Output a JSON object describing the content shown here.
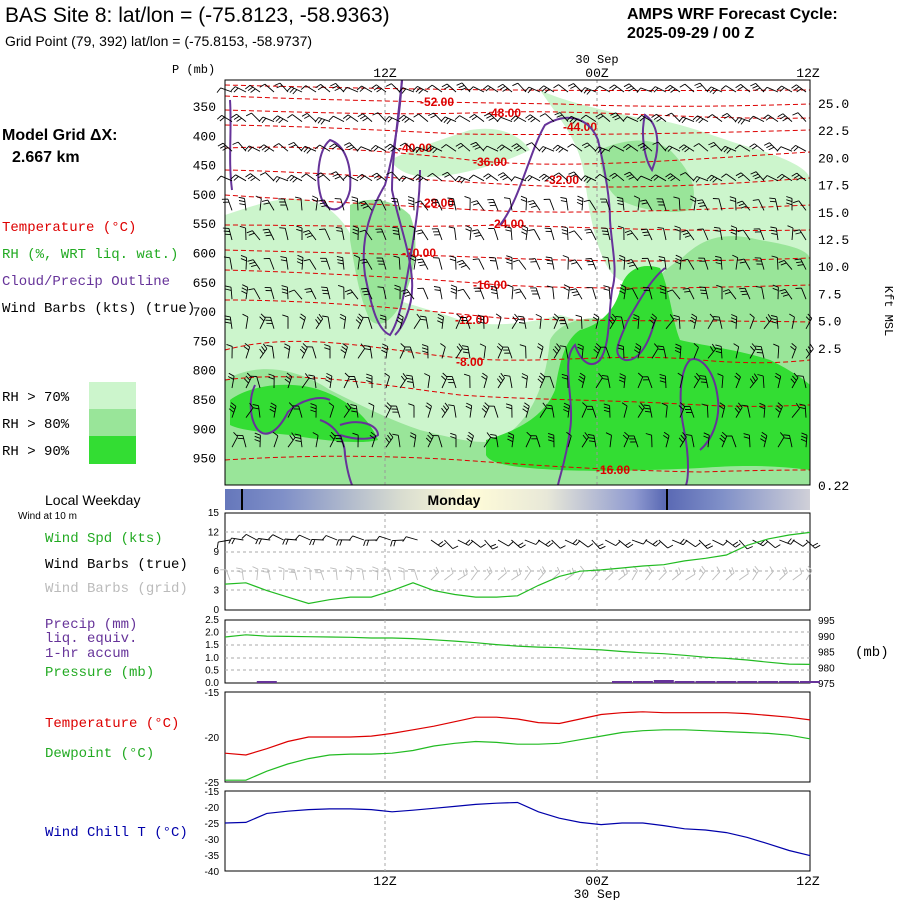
{
  "header": {
    "site_title": "BAS Site 8:  lat/lon = (-75.8123, -58.9363)",
    "grid_point": "Grid Point (79, 392) lat/lon = (-75.8153, -58.9737)",
    "cycle_title": "AMPS WRF Forecast Cycle:",
    "cycle_value": "2025-09-29 / 00  Z"
  },
  "model_grid": {
    "label": "Model Grid ΔX:",
    "value": "2.667 km"
  },
  "time_axis": {
    "top_date": "30 Sep",
    "bottom_date": "30 Sep",
    "ticks": [
      "12Z",
      "00Z",
      "12Z"
    ]
  },
  "colors": {
    "rh70": "#ccf5cc",
    "rh80": "#99e599",
    "rh90": "#33dd33",
    "temp": "#dd0000",
    "cloud": "#663399",
    "rh_text": "#22aa22",
    "wind_chill": "#0000aa",
    "precip": "#663399",
    "grid_barbs": "#bbbbbb"
  },
  "chart_data": [
    {
      "type": "cross-section",
      "title": "Vertical time-height section",
      "ylabel_left": "P (mb)",
      "ylabel_right": "Kft MSL",
      "pressure_levels": [
        350,
        400,
        450,
        500,
        550,
        600,
        650,
        700,
        750,
        800,
        850,
        900,
        950
      ],
      "height_kft_labels": [
        "25.0",
        "22.5",
        "20.0",
        "17.5",
        "15.0",
        "12.5",
        "10.0",
        "7.5",
        "5.0",
        "2.5",
        "0.22"
      ],
      "temperature_labels": [
        "-52.00",
        "-48.00",
        "-44.00",
        "-40.00",
        "-36.00",
        "-32.00",
        "-28.00",
        "-24.00",
        "-20.00",
        "-16.00",
        "-12.00",
        "-8.00",
        "-16.00"
      ],
      "legend": {
        "temperature": "Temperature (°C)",
        "rh": "RH (%, WRT liq. wat.)",
        "cloud": "Cloud/Precip Outline",
        "wind": "Wind Barbs (kts) (true)",
        "rh70": "RH > 70%",
        "rh80": "RH > 80%",
        "rh90": "RH > 90%"
      }
    },
    {
      "type": "band",
      "title": "Local Weekday",
      "day_label": "Monday"
    },
    {
      "type": "line",
      "title": "Wind at 10 m",
      "yticks": [
        "15",
        "12",
        "9",
        "6",
        "3",
        "0"
      ],
      "ylim": [
        0,
        15
      ],
      "legend": {
        "speed": "Wind Spd (kts)",
        "barbs_true": "Wind Barbs (true)",
        "barbs_grid": "Wind Barbs (grid)"
      },
      "x_hours": [
        0,
        3,
        6,
        9,
        12,
        15,
        18,
        21,
        24,
        27,
        30,
        33,
        36,
        39,
        42,
        45,
        48,
        51,
        54,
        57,
        60,
        63,
        66,
        69,
        72,
        75,
        78,
        81,
        84
      ],
      "series": [
        {
          "name": "Wind Spd (kts)",
          "values": [
            4.0,
            4.2,
            3.0,
            2.0,
            1.0,
            1.6,
            2.0,
            2.0,
            3.0,
            4.2,
            3.0,
            2.4,
            2.0,
            2.0,
            2.2,
            3.8,
            5.2,
            6.0,
            6.2,
            6.5,
            6.8,
            7.0,
            7.6,
            8.0,
            8.5,
            10.0,
            11.0,
            11.6,
            12.0
          ]
        }
      ]
    },
    {
      "type": "line",
      "title": "Precip / Pressure",
      "legend": {
        "p1": "Precip (mm)",
        "p2": "liq. equiv.",
        "p3": "1-hr accum",
        "pressure": "Pressure (mb)"
      },
      "yticks_left": [
        "2.5",
        "2.0",
        "1.5",
        "1.0",
        "0.5",
        "0.0"
      ],
      "yticks_right": [
        "995",
        "990",
        "985",
        "980",
        "975"
      ],
      "right_unit": "(mb)",
      "ylim_left": [
        0,
        2.5
      ],
      "ylim_right": [
        975,
        995
      ],
      "x_hours": [
        0,
        3,
        6,
        9,
        12,
        15,
        18,
        21,
        24,
        27,
        30,
        33,
        36,
        39,
        42,
        45,
        48,
        51,
        54,
        57,
        60,
        63,
        66,
        69,
        72,
        75,
        78,
        81,
        84
      ],
      "series": [
        {
          "name": "Pressure (mb)",
          "values": [
            989.6,
            990.3,
            989.9,
            989.8,
            989.7,
            989.6,
            989.5,
            989.3,
            989.3,
            989.1,
            988.7,
            988.3,
            987.8,
            987.2,
            986.7,
            986.4,
            986.2,
            985.8,
            985.5,
            985.0,
            984.6,
            984.3,
            983.8,
            983.2,
            982.8,
            982.3,
            981.6,
            981.0,
            980.9
          ]
        },
        {
          "name": "Precip (mm)",
          "values": [
            0,
            0,
            0.05,
            0,
            0,
            0,
            0,
            0,
            0,
            0,
            0,
            0,
            0,
            0,
            0,
            0,
            0,
            0,
            0,
            0.03,
            0.05,
            0.12,
            0.05,
            0.03,
            0.02,
            0.02,
            0.02,
            0.02,
            0.02
          ]
        }
      ]
    },
    {
      "type": "line",
      "title": "Temperature / Dewpoint",
      "legend": {
        "temp": "Temperature (°C)",
        "dew": "Dewpoint (°C)"
      },
      "yticks": [
        "-15",
        "-20",
        "-25"
      ],
      "ylim": [
        -25,
        -15
      ],
      "x_hours": [
        0,
        3,
        6,
        9,
        12,
        15,
        18,
        21,
        24,
        27,
        30,
        33,
        36,
        39,
        42,
        45,
        48,
        51,
        54,
        57,
        60,
        63,
        66,
        69,
        72,
        75,
        78,
        81,
        84
      ],
      "series": [
        {
          "name": "Temperature (°C)",
          "values": [
            -21.8,
            -22.0,
            -21.3,
            -20.5,
            -20.0,
            -20.0,
            -20.0,
            -19.9,
            -19.6,
            -19.2,
            -18.8,
            -18.3,
            -17.8,
            -17.8,
            -18.0,
            -18.4,
            -18.5,
            -18.0,
            -17.5,
            -17.3,
            -17.2,
            -17.3,
            -17.3,
            -17.3,
            -17.3,
            -17.4,
            -17.6,
            -17.8,
            -18.1
          ]
        },
        {
          "name": "Dewpoint (°C)",
          "values": [
            -24.8,
            -24.8,
            -23.8,
            -23.0,
            -22.4,
            -22.0,
            -21.9,
            -21.9,
            -21.8,
            -21.5,
            -21.0,
            -20.7,
            -20.5,
            -20.6,
            -20.8,
            -20.8,
            -20.7,
            -20.3,
            -19.9,
            -19.5,
            -19.3,
            -19.2,
            -19.2,
            -19.3,
            -19.4,
            -19.5,
            -19.6,
            -19.8,
            -20.2
          ]
        }
      ]
    },
    {
      "type": "line",
      "title": "Wind Chill",
      "legend": {
        "chill": "Wind Chill T (°C)"
      },
      "yticks": [
        "-15",
        "-20",
        "-25",
        "-30",
        "-35",
        "-40"
      ],
      "ylim": [
        -40,
        -15
      ],
      "x_hours": [
        0,
        3,
        6,
        9,
        12,
        15,
        18,
        21,
        24,
        27,
        30,
        33,
        36,
        39,
        42,
        45,
        48,
        51,
        54,
        57,
        60,
        63,
        66,
        69,
        72,
        75,
        78,
        81,
        84
      ],
      "series": [
        {
          "name": "Wind Chill T (°C)",
          "values": [
            -25.0,
            -24.8,
            -22.0,
            -21.3,
            -20.8,
            -20.6,
            -20.6,
            -20.8,
            -21.5,
            -21.0,
            -20.4,
            -19.8,
            -19.2,
            -18.8,
            -18.6,
            -21.5,
            -23.5,
            -24.8,
            -25.5,
            -25.0,
            -25.0,
            -25.8,
            -26.8,
            -27.2,
            -28.0,
            -29.5,
            -31.5,
            -33.6,
            -35.2
          ]
        }
      ]
    }
  ]
}
